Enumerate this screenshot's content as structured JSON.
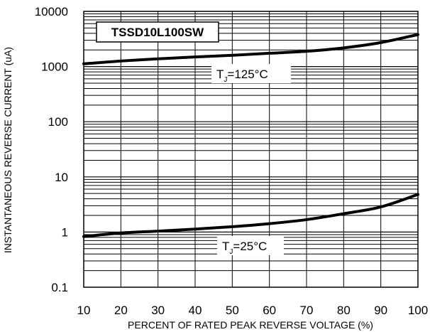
{
  "chart_data": {
    "type": "line",
    "title": "TSSD10L100SW",
    "xlabel": "PERCENT OF RATED PEAK REVERSE VOLTAGE (%)",
    "ylabel": "INSTANTANEOUS REVERSE CURRENT (uA)",
    "x_ticks": [
      "10",
      "20",
      "30",
      "40",
      "50",
      "60",
      "70",
      "80",
      "90",
      "100"
    ],
    "y_ticks": [
      "0.1",
      "1",
      "10",
      "100",
      "1000",
      "10000"
    ],
    "xlim": [
      10,
      100
    ],
    "ylim": [
      0.1,
      10000
    ],
    "y_scale": "log",
    "grid": true,
    "series": [
      {
        "name": "TJ=125°C",
        "label_main": "T",
        "label_sub": "J",
        "label_rest": "=125°C",
        "x": [
          10,
          20,
          30,
          40,
          50,
          60,
          70,
          80,
          90,
          100
        ],
        "y": [
          1120,
          1260,
          1380,
          1490,
          1600,
          1740,
          1890,
          2180,
          2720,
          3800
        ]
      },
      {
        "name": "TJ=25°C",
        "label_main": "T",
        "label_sub": "J",
        "label_rest": "=25°C",
        "x": [
          10,
          20,
          30,
          40,
          50,
          60,
          70,
          80,
          90,
          100
        ],
        "y": [
          0.83,
          0.96,
          1.04,
          1.13,
          1.25,
          1.42,
          1.68,
          2.15,
          2.85,
          4.8
        ]
      }
    ]
  }
}
